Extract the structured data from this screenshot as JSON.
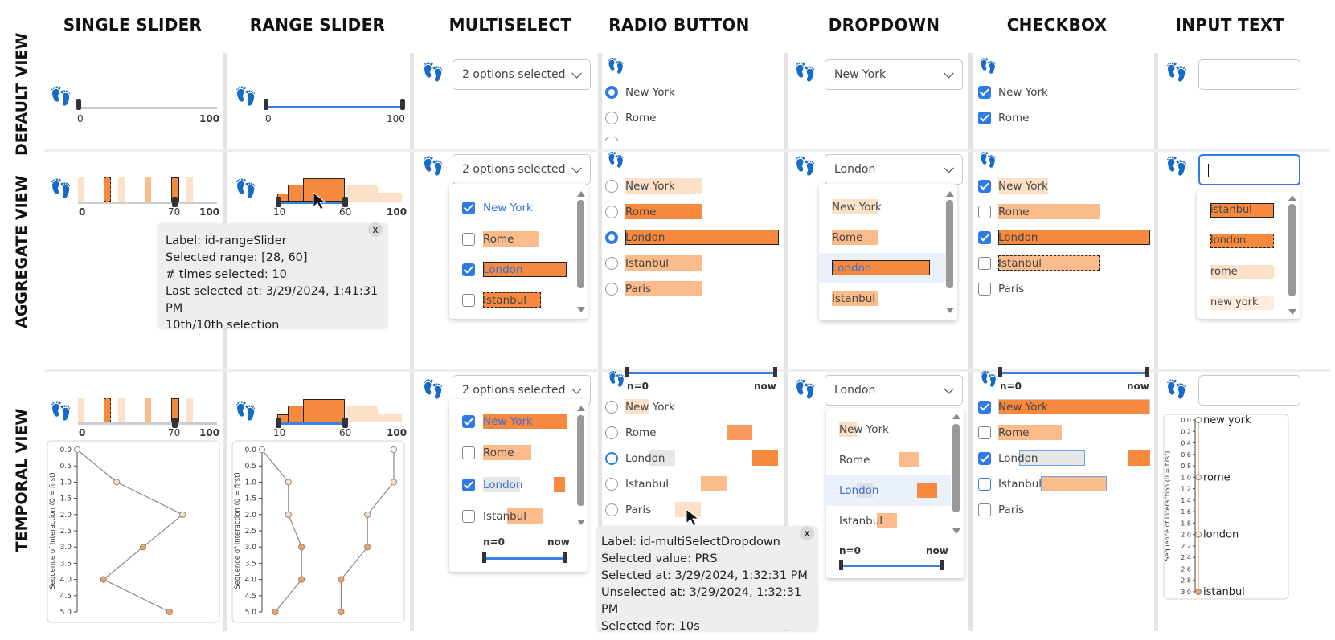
{
  "columns": {
    "single_slider": "SINGLE SLIDER",
    "range_slider": "RANGE SLIDER",
    "multiselect": "MULTISELECT",
    "radio_button": "RADIO BUTTON",
    "dropdown": "DROPDOWN",
    "checkbox": "CHECKBOX",
    "input_text": "INPUT TEXT"
  },
  "rows": {
    "default": "DEFAULT VIEW",
    "aggregate": "AGGREGATE VIEW",
    "temporal": "TEMPORAL VIEW"
  },
  "slider": {
    "min": "0",
    "max": "100",
    "agg_value": "70",
    "range_low": "10",
    "range_high": "60"
  },
  "multiselect": {
    "placeholder": "2 options selected"
  },
  "dropdown": {
    "default_value": "New York",
    "selected_value": "London"
  },
  "options": {
    "new_york": "New York",
    "rome": "Rome",
    "london": "London",
    "istanbul": "Istanbul",
    "paris": "Paris",
    "truncated": "Istanbul"
  },
  "input_options": {
    "istanbul": "istanbul",
    "london": "london",
    "rome": "rome",
    "new_york": "new york"
  },
  "timeline": {
    "start": "n=0",
    "end": "now"
  },
  "tooltip_range": {
    "line1": "Label: id-rangeSlider",
    "line2": "Selected range: [28, 60]",
    "line3": "# times selected: 10",
    "line4": "Last selected at: 3/29/2024, 1:41:31 PM",
    "line5": "10th/10th selection",
    "close": "x"
  },
  "tooltip_radio": {
    "line1": "Label: id-multiSelectDropdown",
    "line2": "Selected value: PRS",
    "line3": "Selected at: 3/29/2024, 1:32:31 PM",
    "line4": "Unselected at: 3/29/2024, 1:32:31 PM",
    "line5_label": "Selected for: ",
    "line5_value": "10s",
    "close": "x"
  },
  "seq_axis": {
    "label": "Sequence of Interaction (0 = first)",
    "ticks": [
      "0.0",
      "0.5",
      "1.0",
      "1.5",
      "2.0",
      "2.5",
      "3.0",
      "3.5",
      "4.0",
      "4.5",
      "5.0"
    ],
    "ticks_fine": [
      "0.0",
      "0.2",
      "0.4",
      "0.6",
      "0.8",
      "1.0",
      "1.2",
      "1.4",
      "1.6",
      "1.8",
      "2.0",
      "2.2",
      "2.4",
      "2.6",
      "2.8",
      "3.0"
    ]
  },
  "chart_data": [
    {
      "type": "line",
      "title": "",
      "ylabel": "Sequence of Interaction (0 = first)",
      "ylim": [
        0,
        5
      ],
      "y_inverted": true,
      "series": [
        {
          "values": [
            {
              "x": 0,
              "y": 0
            },
            {
              "x": 30,
              "y": 1
            },
            {
              "x": 80,
              "y": 2
            },
            {
              "x": 50,
              "y": 3
            },
            {
              "x": 20,
              "y": 4
            },
            {
              "x": 70,
              "y": 5
            }
          ]
        }
      ]
    },
    {
      "type": "line",
      "title": "",
      "ylabel": "Sequence of Interaction (0 = first)",
      "ylim": [
        0,
        5
      ],
      "y_inverted": true,
      "series": [
        {
          "values": [
            {
              "x": 0,
              "y": 0
            },
            {
              "x": 20,
              "y": 1
            },
            {
              "x": 20,
              "y": 2
            },
            {
              "x": 30,
              "y": 3
            },
            {
              "x": 30,
              "y": 4
            },
            {
              "x": 10,
              "y": 5
            }
          ]
        },
        {
          "values": [
            {
              "x": 100,
              "y": 0
            },
            {
              "x": 100,
              "y": 1
            },
            {
              "x": 80,
              "y": 2
            },
            {
              "x": 80,
              "y": 3
            },
            {
              "x": 60,
              "y": 4
            },
            {
              "x": 60,
              "y": 5
            }
          ]
        }
      ]
    },
    {
      "type": "line",
      "title": "",
      "ylabel": "Sequence of Interaction (0 = first)",
      "ylim": [
        0,
        3
      ],
      "y_inverted": true,
      "categories": [
        "new york",
        "rome",
        "london",
        "istanbul"
      ],
      "series": [
        {
          "values": [
            0,
            1,
            2,
            3
          ]
        }
      ]
    }
  ],
  "colors": {
    "accent": "#2e7ae6",
    "orange_dark": "#f7893f",
    "orange_mid": "#fbbb8a",
    "orange_light": "#fde0c8"
  },
  "icons": {
    "footprints": "footprints-icon",
    "cursor": "cursor-arrow-icon"
  }
}
